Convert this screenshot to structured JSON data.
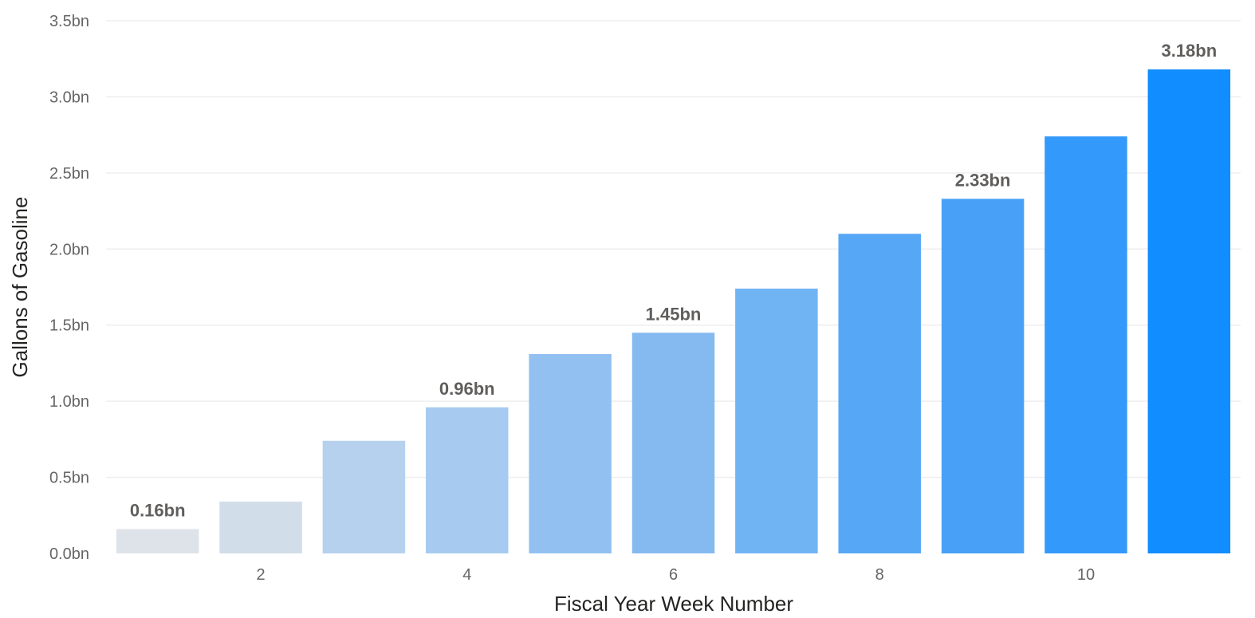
{
  "chart_data": {
    "type": "bar",
    "xlabel": "Fiscal Year Week Number",
    "ylabel": "Gallons of Gasoline",
    "ylim": [
      0,
      3.5
    ],
    "y_ticks": [
      {
        "value": 0.0,
        "label": "0.0bn"
      },
      {
        "value": 0.5,
        "label": "0.5bn"
      },
      {
        "value": 1.0,
        "label": "1.0bn"
      },
      {
        "value": 1.5,
        "label": "1.5bn"
      },
      {
        "value": 2.0,
        "label": "2.0bn"
      },
      {
        "value": 2.5,
        "label": "2.5bn"
      },
      {
        "value": 3.0,
        "label": "3.0bn"
      },
      {
        "value": 3.5,
        "label": "3.5bn"
      }
    ],
    "x_ticks": [
      {
        "value": 2,
        "label": "2"
      },
      {
        "value": 4,
        "label": "4"
      },
      {
        "value": 6,
        "label": "6"
      },
      {
        "value": 8,
        "label": "8"
      },
      {
        "value": 10,
        "label": "10"
      }
    ],
    "x": [
      1,
      2,
      3,
      4,
      5,
      6,
      7,
      8,
      9,
      10,
      11
    ],
    "values": [
      0.16,
      0.34,
      0.74,
      0.96,
      1.31,
      1.45,
      1.74,
      2.1,
      2.33,
      2.74,
      3.18
    ],
    "data_labels": [
      {
        "x": 1,
        "text": "0.16bn"
      },
      {
        "x": 4,
        "text": "0.96bn"
      },
      {
        "x": 6,
        "text": "1.45bn"
      },
      {
        "x": 9,
        "text": "2.33bn"
      },
      {
        "x": 11,
        "text": "3.18bn"
      }
    ],
    "bar_colors": [
      "#dee3ea",
      "#d1dde8",
      "#b5d1ee",
      "#a7cbf0",
      "#92c1f1",
      "#85baf0",
      "#71b4f3",
      "#56a8f6",
      "#48a1f6",
      "#3399fb",
      "#118dff"
    ],
    "grid": true,
    "legend": "none"
  }
}
